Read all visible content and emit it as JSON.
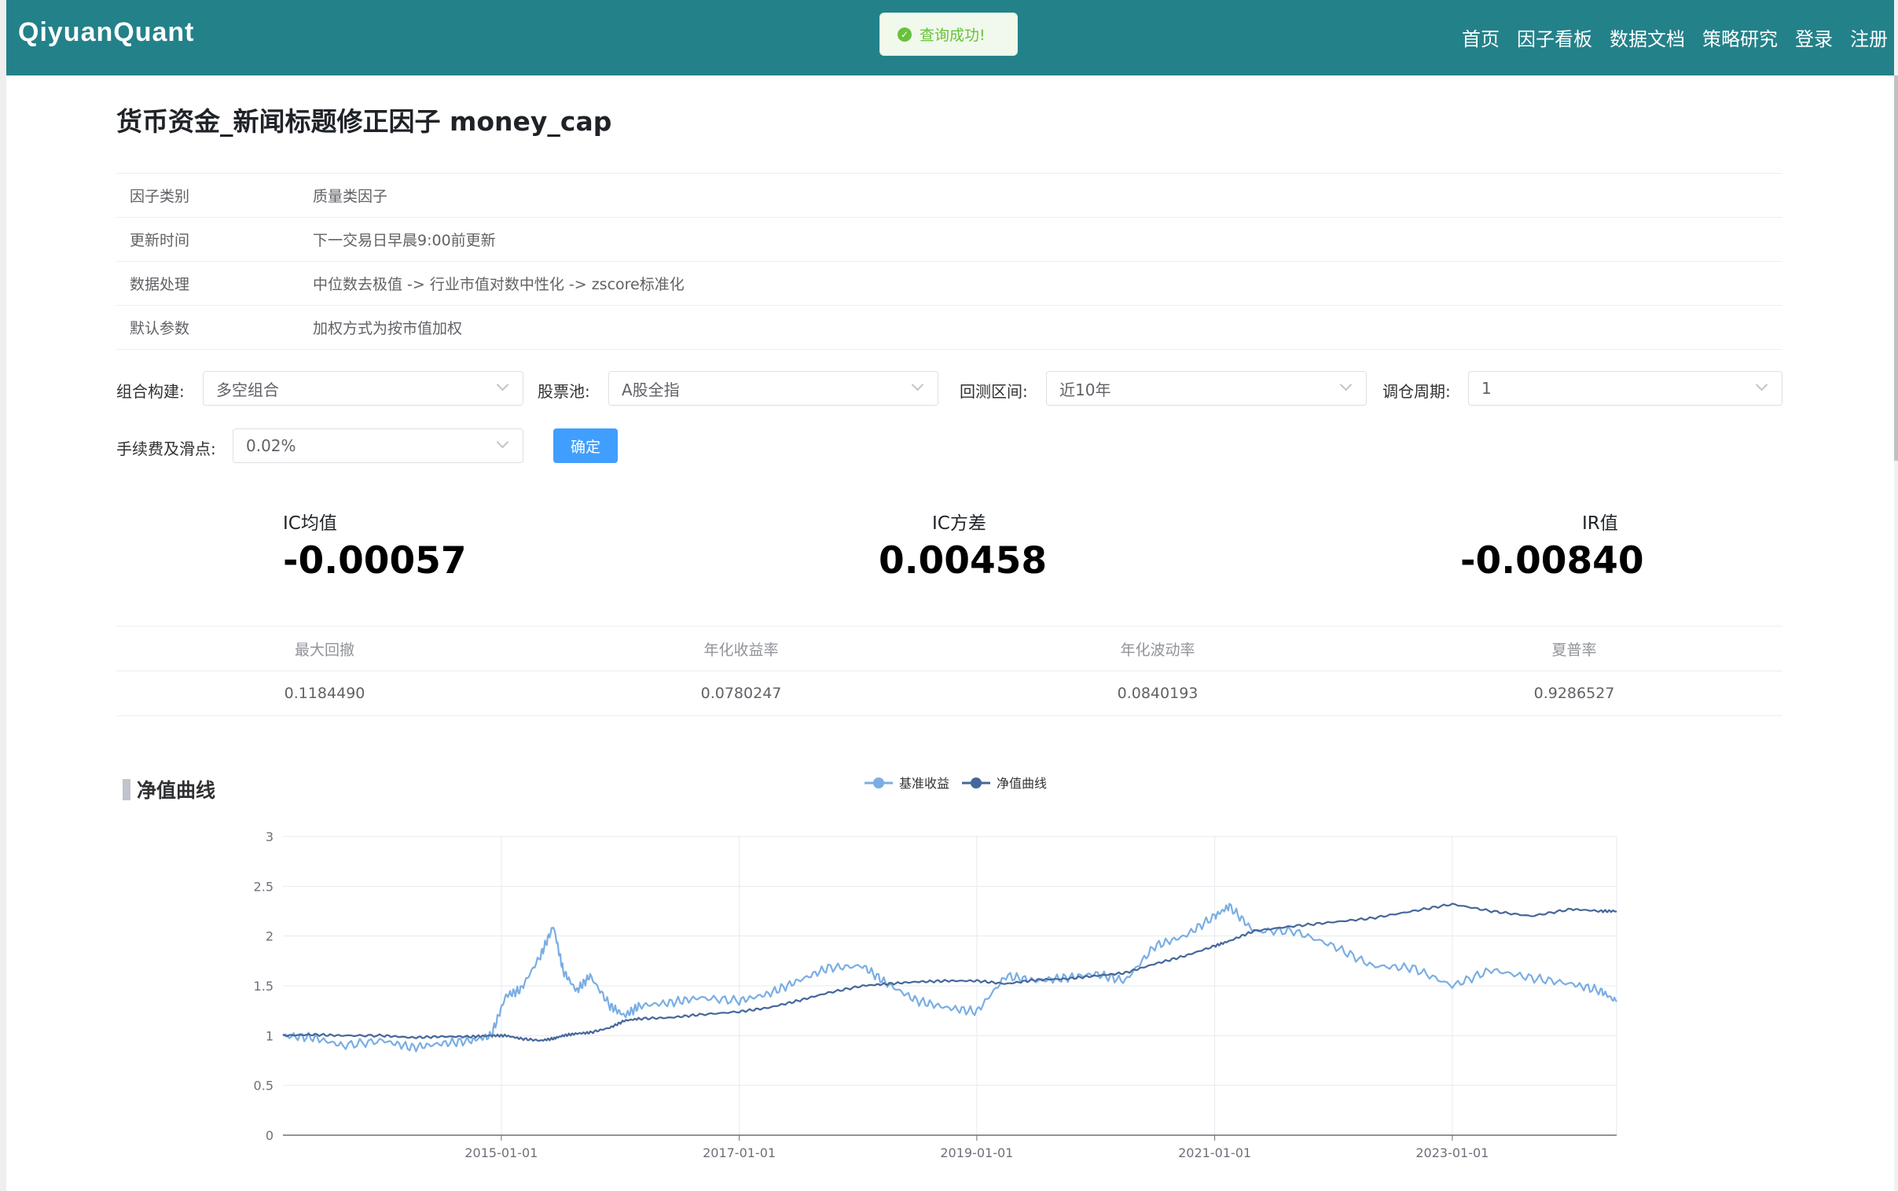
{
  "header": {
    "brand": "QiyuanQuant",
    "nav": [
      "首页",
      "因子看板",
      "数据文档",
      "策略研究",
      "登录",
      "注册"
    ]
  },
  "toast": {
    "icon": "success-check-icon",
    "text": "查询成功!"
  },
  "page_title": "货币资金_新闻标题修正因子 money_cap",
  "info": [
    {
      "key": "因子类别",
      "value": "质量类因子"
    },
    {
      "key": "更新时间",
      "value": "下一交易日早晨9:00前更新"
    },
    {
      "key": "数据处理",
      "value": "中位数去极值 -> 行业市值对数中性化 -> zscore标准化"
    },
    {
      "key": "默认参数",
      "value": "加权方式为按市值加权"
    }
  ],
  "form": {
    "portfolio_label": "组合构建:",
    "portfolio_value": "多空组合",
    "pool_label": "股票池:",
    "pool_value": "A股全指",
    "period_label": "回测区间:",
    "period_value": "近10年",
    "rebalance_label": "调仓周期:",
    "rebalance_value": "1",
    "fee_label": "手续费及滑点:",
    "fee_value": "0.02%",
    "confirm": "确定"
  },
  "stats": [
    {
      "label": "IC均值",
      "value": "-0.00057"
    },
    {
      "label": "IC方差",
      "value": "0.00458"
    },
    {
      "label": "IR值",
      "value": "-0.00840"
    }
  ],
  "metrics": {
    "headers": [
      "最大回撤",
      "年化收益率",
      "年化波动率",
      "夏普率"
    ],
    "values": [
      "0.1184490",
      "0.0780247",
      "0.0840193",
      "0.9286527"
    ]
  },
  "chart_title": "净值曲线",
  "colors": {
    "brand": "#23818a",
    "primary": "#409eff",
    "success": "#67c23a",
    "benchmark": "#7aaee3",
    "nav": "#46679a"
  },
  "chart_data": {
    "type": "line",
    "legend_position": "top",
    "grid": true,
    "ylim": [
      0,
      3
    ],
    "yticks": [
      "0",
      "0.5",
      "1",
      "1.5",
      "2",
      "2.5",
      "3"
    ],
    "xticks": [
      "2015-01-01",
      "2017-01-01",
      "2019-01-01",
      "2021-01-01",
      "2023-01-01"
    ],
    "x": [
      "2013-03-01",
      "2013-06-01",
      "2013-09-01",
      "2014-01-01",
      "2014-04-01",
      "2014-07-01",
      "2014-10-01",
      "2014-12-01",
      "2015-01-15",
      "2015-03-01",
      "2015-05-01",
      "2015-06-10",
      "2015-07-10",
      "2015-08-20",
      "2015-10-01",
      "2015-12-01",
      "2016-01-15",
      "2016-03-01",
      "2016-06-01",
      "2016-09-01",
      "2017-01-01",
      "2017-04-01",
      "2017-07-01",
      "2017-10-01",
      "2018-01-15",
      "2018-04-01",
      "2018-07-01",
      "2018-10-01",
      "2019-01-01",
      "2019-04-01",
      "2019-07-01",
      "2019-10-01",
      "2020-01-01",
      "2020-04-01",
      "2020-07-01",
      "2020-10-01",
      "2021-01-01",
      "2021-02-15",
      "2021-05-01",
      "2021-09-01",
      "2022-01-01",
      "2022-05-01",
      "2022-09-01",
      "2023-01-01",
      "2023-05-01",
      "2023-09-01",
      "2024-01-01",
      "2024-04-01",
      "2024-05-20"
    ],
    "series": [
      {
        "name": "基准收益",
        "values": [
          1.0,
          0.98,
          0.9,
          0.95,
          0.88,
          0.92,
          0.95,
          1.0,
          1.4,
          1.46,
          1.8,
          2.1,
          1.65,
          1.45,
          1.6,
          1.3,
          1.2,
          1.3,
          1.33,
          1.38,
          1.35,
          1.42,
          1.55,
          1.68,
          1.7,
          1.52,
          1.35,
          1.28,
          1.24,
          1.6,
          1.55,
          1.58,
          1.62,
          1.55,
          1.9,
          2.0,
          2.2,
          2.3,
          2.05,
          2.05,
          1.9,
          1.7,
          1.68,
          1.5,
          1.66,
          1.58,
          1.52,
          1.45,
          1.34
        ]
      },
      {
        "name": "净值曲线",
        "values": [
          1.0,
          1.01,
          1.0,
          1.0,
          0.98,
          0.99,
          0.99,
          1.0,
          1.0,
          0.97,
          0.95,
          0.97,
          1.0,
          1.02,
          1.03,
          1.08,
          1.15,
          1.17,
          1.18,
          1.21,
          1.24,
          1.28,
          1.35,
          1.43,
          1.5,
          1.52,
          1.54,
          1.55,
          1.55,
          1.52,
          1.56,
          1.57,
          1.6,
          1.63,
          1.72,
          1.8,
          1.9,
          1.95,
          2.05,
          2.1,
          2.14,
          2.18,
          2.25,
          2.32,
          2.25,
          2.2,
          2.27,
          2.25,
          2.25
        ]
      }
    ]
  }
}
